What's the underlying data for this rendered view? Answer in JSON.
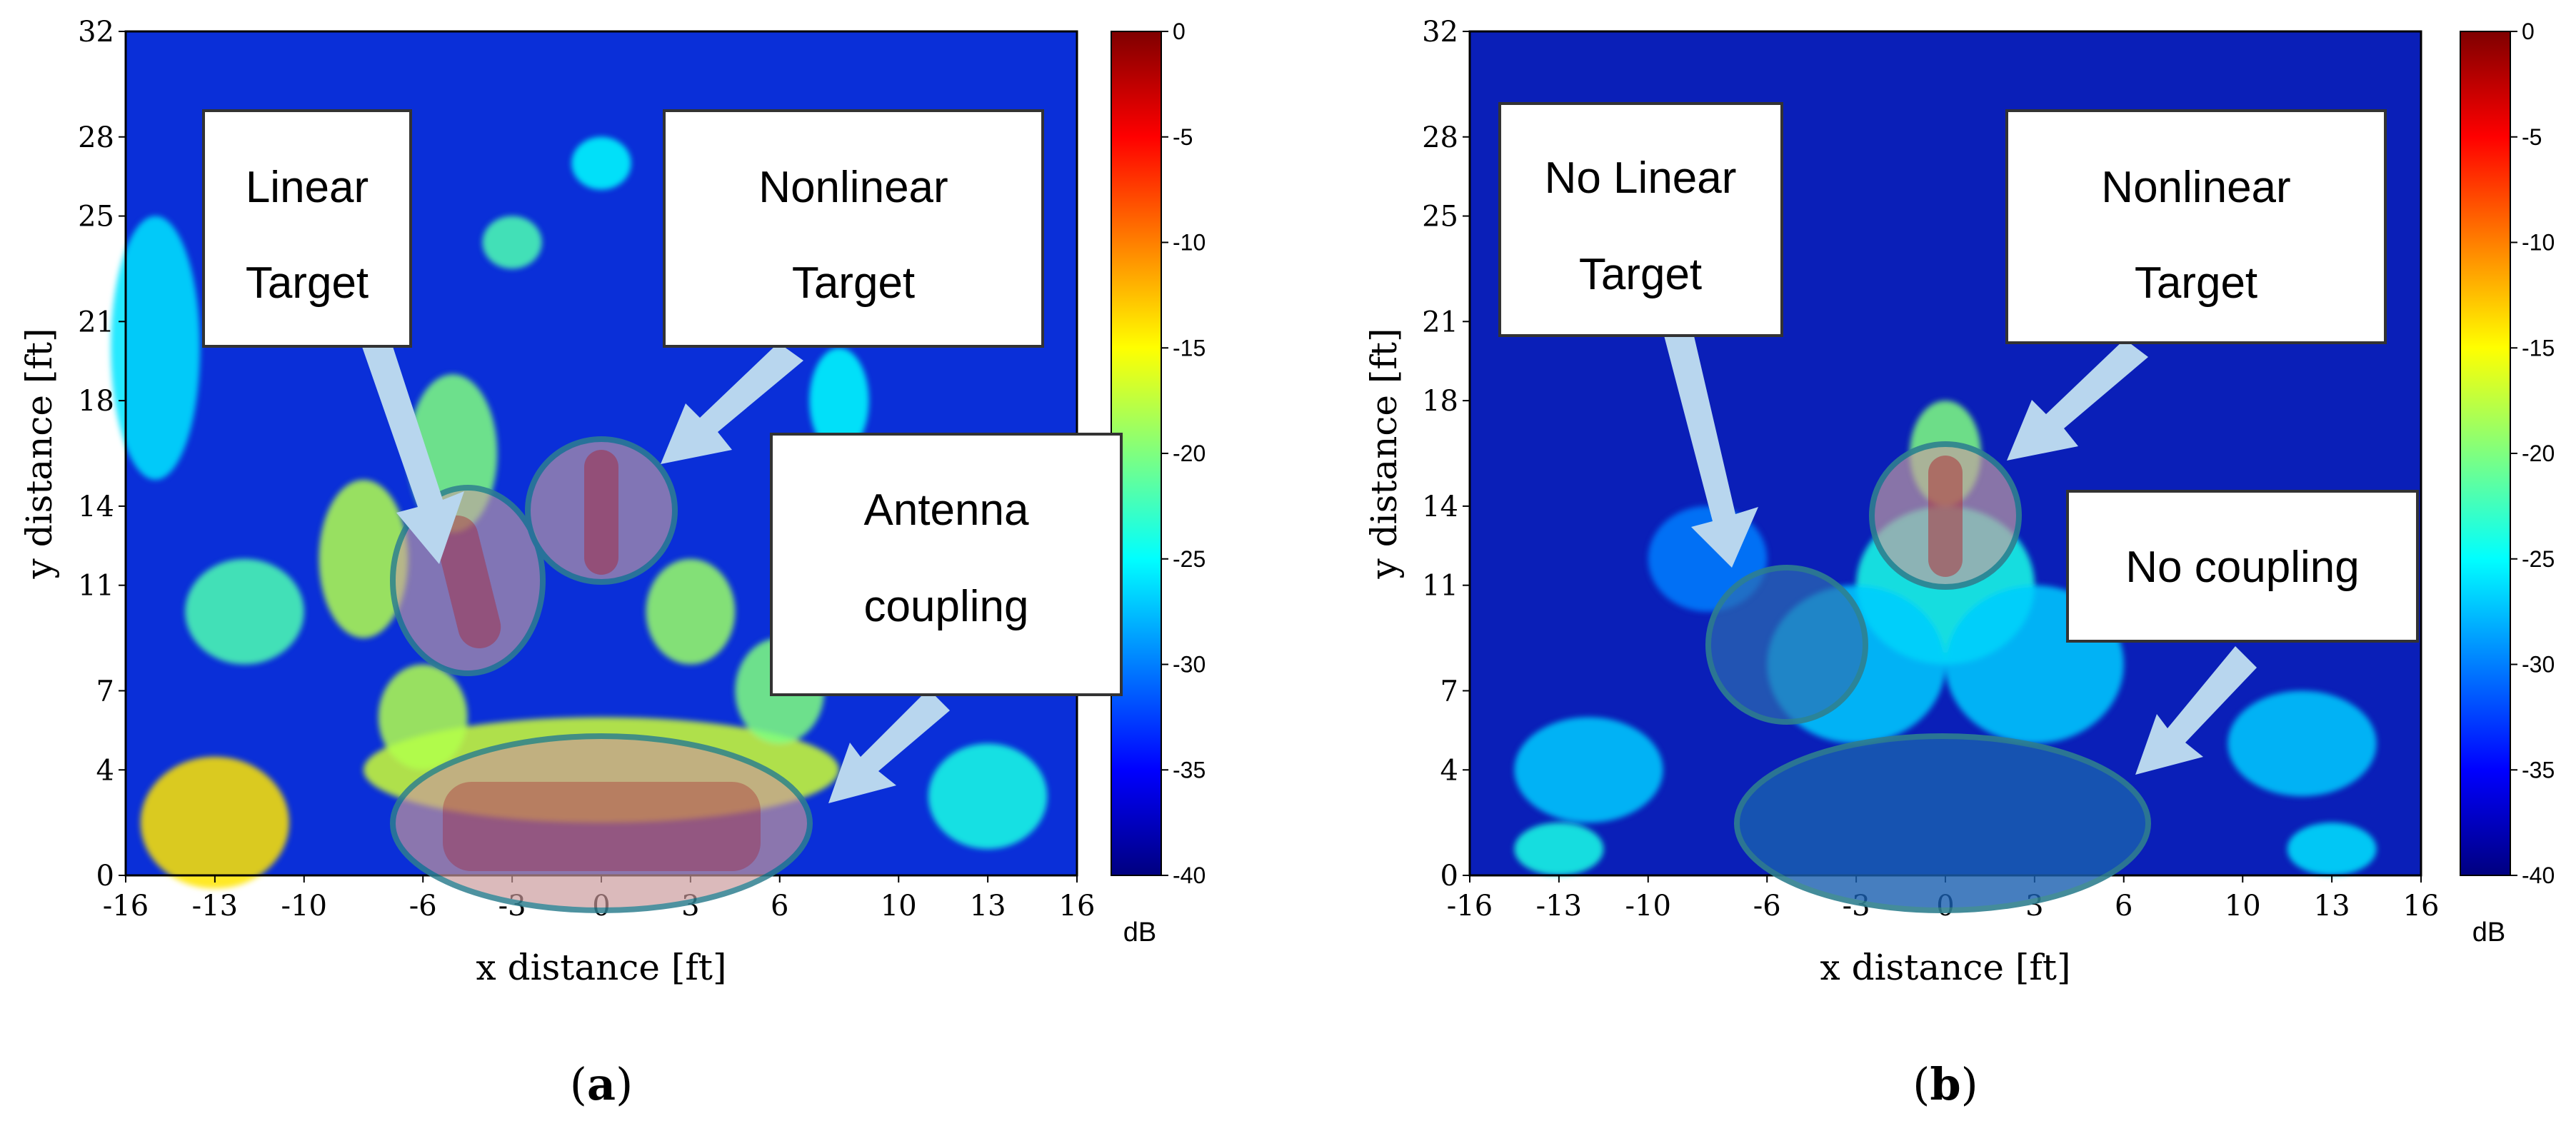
{
  "colormap": {
    "stops": [
      "#00007f",
      "#0000ff",
      "#007fff",
      "#00ffff",
      "#7fff7f",
      "#ffff00",
      "#ff7f00",
      "#ff0000",
      "#7f0000"
    ]
  },
  "chart_data": [
    {
      "type": "heatmap",
      "panel_label": "a",
      "xlabel": "x distance [ft]",
      "ylabel": "y distance [ft]",
      "xlim": [
        -16,
        16
      ],
      "ylim": [
        0,
        32
      ],
      "xticks": [
        "-16",
        "-13",
        "-10",
        "-6",
        "-3",
        "0",
        "3",
        "6",
        "10",
        "13",
        "16"
      ],
      "yticks": [
        "0",
        "4",
        "7",
        "11",
        "14",
        "18",
        "21",
        "25",
        "28",
        "32"
      ],
      "colorbar": {
        "unit": "dB",
        "range": [
          -40,
          0
        ],
        "ticks": [
          "0",
          "-5",
          "-10",
          "-15",
          "-20",
          "-25",
          "-30",
          "-35",
          "-40"
        ]
      },
      "annotations": [
        {
          "lines": [
            "Linear",
            "Target"
          ]
        },
        {
          "lines": [
            "Nonlinear",
            "Target"
          ]
        },
        {
          "lines": [
            "Antenna",
            "coupling"
          ]
        }
      ],
      "highlighted_regions": [
        {
          "label": "Linear Target",
          "center": [
            -4,
            9.5
          ],
          "level_db": -5
        },
        {
          "label": "Nonlinear Target",
          "center": [
            0,
            13.5
          ],
          "level_db": -3
        },
        {
          "label": "Antenna coupling",
          "center": [
            0,
            1.5
          ],
          "level_db": -2
        }
      ]
    },
    {
      "type": "heatmap",
      "panel_label": "b",
      "xlabel": "x distance [ft]",
      "ylabel": "y distance [ft]",
      "xlim": [
        -16,
        16
      ],
      "ylim": [
        0,
        32
      ],
      "xticks": [
        "-16",
        "-13",
        "-10",
        "-6",
        "-3",
        "0",
        "3",
        "6",
        "10",
        "13",
        "16"
      ],
      "yticks": [
        "0",
        "4",
        "7",
        "11",
        "14",
        "18",
        "21",
        "25",
        "28",
        "32"
      ],
      "colorbar": {
        "unit": "dB",
        "range": [
          -40,
          0
        ],
        "ticks": [
          "0",
          "-5",
          "-10",
          "-15",
          "-20",
          "-25",
          "-30",
          "-35",
          "-40"
        ]
      },
      "annotations": [
        {
          "lines": [
            "No Linear",
            "Target"
          ]
        },
        {
          "lines": [
            "Nonlinear",
            "Target"
          ]
        },
        {
          "lines": [
            "No coupling"
          ]
        }
      ],
      "highlighted_regions": [
        {
          "label": "No Linear Target",
          "center": [
            -5,
            8.5
          ],
          "level_db": -33
        },
        {
          "label": "Nonlinear Target",
          "center": [
            0,
            13.5
          ],
          "level_db": -3
        },
        {
          "label": "No coupling",
          "center": [
            0,
            2
          ],
          "level_db": -38
        }
      ]
    }
  ]
}
